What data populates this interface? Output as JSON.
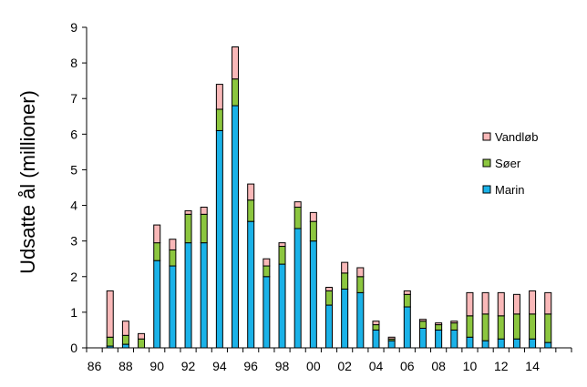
{
  "chart_data": {
    "type": "bar",
    "stacked": true,
    "ylabel": "Udsatte ål (millioner)",
    "xlabel": "",
    "ylim": [
      0,
      9
    ],
    "y_ticks": [
      "0",
      "1",
      "2",
      "3",
      "4",
      "5",
      "6",
      "7",
      "8",
      "9"
    ],
    "x_ticks": [
      "86",
      "88",
      "90",
      "92",
      "94",
      "96",
      "98",
      "00",
      "02",
      "04",
      "06",
      "08",
      "10",
      "12",
      "14"
    ],
    "years": [
      "1987",
      "1988",
      "1989",
      "1990",
      "1991",
      "1992",
      "1993",
      "1994",
      "1995",
      "1996",
      "1997",
      "1998",
      "1999",
      "2000",
      "2001",
      "2002",
      "2003",
      "2004",
      "2005",
      "2006",
      "2007",
      "2008",
      "2009",
      "2010",
      "2011",
      "2012",
      "2013",
      "2014",
      "2015"
    ],
    "series": [
      {
        "name": "Marin",
        "color": "#1AB2E8",
        "values": [
          0.05,
          0.1,
          0.0,
          2.45,
          2.3,
          2.95,
          2.95,
          6.1,
          6.8,
          3.55,
          2.0,
          2.35,
          3.35,
          3.0,
          1.2,
          1.65,
          1.55,
          0.5,
          0.2,
          1.15,
          0.55,
          0.5,
          0.5,
          0.3,
          0.2,
          0.25,
          0.25,
          0.25,
          0.15
        ]
      },
      {
        "name": "Søer",
        "color": "#8CC63F",
        "values": [
          0.25,
          0.25,
          0.25,
          0.5,
          0.45,
          0.8,
          0.8,
          0.6,
          0.75,
          0.6,
          0.3,
          0.5,
          0.6,
          0.55,
          0.4,
          0.45,
          0.45,
          0.15,
          0.05,
          0.35,
          0.2,
          0.15,
          0.2,
          0.6,
          0.75,
          0.65,
          0.7,
          0.7,
          0.8
        ]
      },
      {
        "name": "Vandløb",
        "color": "#F9B8B8",
        "values": [
          1.3,
          0.4,
          0.15,
          0.5,
          0.3,
          0.1,
          0.2,
          0.7,
          0.9,
          0.45,
          0.2,
          0.1,
          0.15,
          0.25,
          0.1,
          0.3,
          0.25,
          0.1,
          0.05,
          0.1,
          0.05,
          0.05,
          0.05,
          0.65,
          0.6,
          0.65,
          0.55,
          0.65,
          0.6
        ]
      }
    ],
    "legend_position": "right",
    "grid": false
  }
}
